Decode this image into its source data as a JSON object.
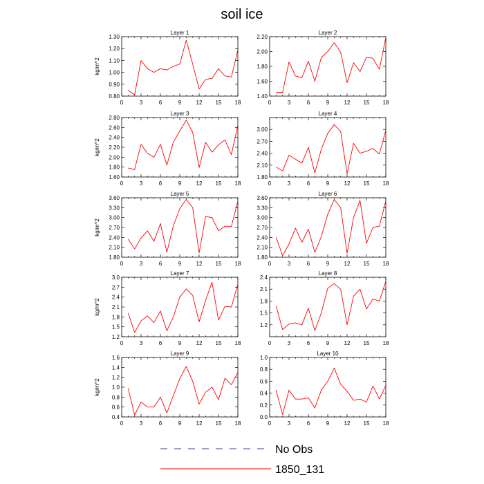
{
  "figure_title": "soil ice",
  "colors": {
    "model_line": "#ff0000",
    "obs_line": "#3d3d99",
    "axis": "#000000"
  },
  "legend": [
    {
      "label": "No Obs",
      "style": "dashed",
      "color": "#3d3d99"
    },
    {
      "label": "1850_131",
      "style": "solid",
      "color": "#ff0000"
    }
  ],
  "chart_data": [
    {
      "type": "line",
      "title": "Layer 1",
      "xlabel": "",
      "ylabel": "kg/m^2",
      "xlim": [
        0,
        18
      ],
      "ylim": [
        0.8,
        1.3
      ],
      "xticks": [
        0,
        3,
        6,
        9,
        12,
        15,
        18
      ],
      "xticklabels": [
        "0",
        "3",
        "6",
        "9",
        "12",
        "15",
        "18"
      ],
      "yticks": [
        0.8,
        0.9,
        1.0,
        1.1,
        1.2,
        1.3
      ],
      "yticklabels": [
        "0.80",
        "0.90",
        "1.00",
        "1.10",
        "1.20",
        "1.30"
      ],
      "x": [
        1,
        2,
        3,
        4,
        5,
        6,
        7,
        8,
        9,
        10,
        11,
        12,
        13,
        14,
        15,
        16,
        17,
        18
      ],
      "series": [
        {
          "name": "1850_131",
          "values": [
            0.85,
            0.81,
            1.1,
            1.03,
            1.0,
            1.03,
            1.02,
            1.05,
            1.07,
            1.27,
            1.07,
            0.86,
            0.94,
            0.95,
            1.03,
            0.97,
            0.96,
            1.19
          ]
        }
      ]
    },
    {
      "type": "line",
      "title": "Layer 2",
      "xlabel": "",
      "ylabel": "",
      "xlim": [
        0,
        18
      ],
      "ylim": [
        1.4,
        2.2
      ],
      "xticks": [
        0,
        3,
        6,
        9,
        12,
        15,
        18
      ],
      "xticklabels": [
        "0",
        "3",
        "6",
        "9",
        "12",
        "15",
        "18"
      ],
      "yticks": [
        1.4,
        1.6,
        1.8,
        2.0,
        2.2
      ],
      "yticklabels": [
        "1.40",
        "1.60",
        "1.80",
        "2.00",
        "2.20"
      ],
      "x": [
        1,
        2,
        3,
        4,
        5,
        6,
        7,
        8,
        9,
        10,
        11,
        12,
        13,
        14,
        15,
        16,
        17,
        18
      ],
      "series": [
        {
          "name": "1850_131",
          "values": [
            1.45,
            1.45,
            1.86,
            1.67,
            1.65,
            1.87,
            1.6,
            1.92,
            2.0,
            2.12,
            1.99,
            1.58,
            1.85,
            1.73,
            1.92,
            1.91,
            1.76,
            2.19
          ]
        }
      ]
    },
    {
      "type": "line",
      "title": "Layer 3",
      "xlabel": "",
      "ylabel": "kg/m^2",
      "xlim": [
        0,
        18
      ],
      "ylim": [
        1.6,
        2.8
      ],
      "xticks": [
        0,
        3,
        6,
        9,
        12,
        15,
        18
      ],
      "xticklabels": [
        "0",
        "3",
        "6",
        "9",
        "12",
        "15",
        "18"
      ],
      "yticks": [
        1.6,
        1.8,
        2.0,
        2.2,
        2.4,
        2.6,
        2.8
      ],
      "yticklabels": [
        "1.60",
        "1.80",
        "2.00",
        "2.20",
        "2.40",
        "2.60",
        "2.80"
      ],
      "x": [
        1,
        2,
        3,
        4,
        5,
        6,
        7,
        8,
        9,
        10,
        11,
        12,
        13,
        14,
        15,
        16,
        17,
        18
      ],
      "series": [
        {
          "name": "1850_131",
          "values": [
            1.78,
            1.75,
            2.26,
            2.08,
            2.0,
            2.26,
            1.84,
            2.3,
            2.53,
            2.75,
            2.5,
            1.79,
            2.3,
            2.1,
            2.25,
            2.35,
            2.05,
            2.65
          ]
        }
      ]
    },
    {
      "type": "line",
      "title": "Layer 4",
      "xlabel": "",
      "ylabel": "",
      "xlim": [
        0,
        18
      ],
      "ylim": [
        1.8,
        3.3
      ],
      "xticks": [
        0,
        3,
        6,
        9,
        12,
        15,
        18
      ],
      "xticklabels": [
        "0",
        "3",
        "6",
        "9",
        "12",
        "15",
        "18"
      ],
      "yticks": [
        1.8,
        2.1,
        2.4,
        2.7,
        3.0
      ],
      "yticklabels": [
        "1.80",
        "2.10",
        "2.40",
        "2.70",
        "3.00"
      ],
      "x": [
        1,
        2,
        3,
        4,
        5,
        6,
        7,
        8,
        9,
        10,
        11,
        12,
        13,
        14,
        15,
        16,
        17,
        18
      ],
      "series": [
        {
          "name": "1850_131",
          "values": [
            2.05,
            1.95,
            2.35,
            2.25,
            2.15,
            2.55,
            1.9,
            2.5,
            2.9,
            3.12,
            2.95,
            1.88,
            2.65,
            2.4,
            2.45,
            2.52,
            2.38,
            2.98
          ]
        }
      ]
    },
    {
      "type": "line",
      "title": "Layer 5",
      "xlabel": "",
      "ylabel": "kg/m^2",
      "xlim": [
        0,
        18
      ],
      "ylim": [
        1.8,
        3.6
      ],
      "xticks": [
        0,
        3,
        6,
        9,
        12,
        15,
        18
      ],
      "xticklabels": [
        "0",
        "3",
        "6",
        "9",
        "12",
        "15",
        "18"
      ],
      "yticks": [
        1.8,
        2.1,
        2.4,
        2.7,
        3.0,
        3.3,
        3.6
      ],
      "yticklabels": [
        "1.80",
        "2.10",
        "2.40",
        "2.70",
        "3.00",
        "3.30",
        "3.60"
      ],
      "x": [
        1,
        2,
        3,
        4,
        5,
        6,
        7,
        8,
        9,
        10,
        11,
        12,
        13,
        14,
        15,
        16,
        17,
        18
      ],
      "series": [
        {
          "name": "1850_131",
          "values": [
            2.35,
            2.05,
            2.38,
            2.6,
            2.28,
            2.82,
            1.95,
            2.75,
            3.27,
            3.55,
            3.3,
            1.93,
            3.03,
            3.0,
            2.6,
            2.74,
            2.73,
            3.5
          ]
        }
      ]
    },
    {
      "type": "line",
      "title": "Layer 6",
      "xlabel": "",
      "ylabel": "",
      "xlim": [
        0,
        18
      ],
      "ylim": [
        1.8,
        3.6
      ],
      "xticks": [
        0,
        3,
        6,
        9,
        12,
        15,
        18
      ],
      "xticklabels": [
        "0",
        "3",
        "6",
        "9",
        "12",
        "15",
        "18"
      ],
      "yticks": [
        1.8,
        2.1,
        2.4,
        2.7,
        3.0,
        3.3,
        3.6
      ],
      "yticklabels": [
        "1.80",
        "2.10",
        "2.40",
        "2.70",
        "3.00",
        "3.30",
        "3.60"
      ],
      "x": [
        1,
        2,
        3,
        4,
        5,
        6,
        7,
        8,
        9,
        10,
        11,
        12,
        13,
        14,
        15,
        16,
        17,
        18
      ],
      "series": [
        {
          "name": "1850_131",
          "values": [
            2.4,
            1.85,
            2.2,
            2.68,
            2.25,
            2.65,
            1.95,
            2.42,
            3.1,
            3.55,
            3.3,
            1.92,
            3.0,
            3.52,
            2.22,
            2.7,
            2.74,
            3.5
          ]
        }
      ]
    },
    {
      "type": "line",
      "title": "Layer 7",
      "xlabel": "",
      "ylabel": "kg/m^2",
      "xlim": [
        0,
        18
      ],
      "ylim": [
        1.2,
        3.0
      ],
      "xticks": [
        0,
        3,
        6,
        9,
        12,
        15,
        18
      ],
      "xticklabels": [
        "0",
        "3",
        "6",
        "9",
        "12",
        "15",
        "18"
      ],
      "yticks": [
        1.2,
        1.5,
        1.8,
        2.1,
        2.4,
        2.7,
        3.0
      ],
      "yticklabels": [
        "1.2",
        "1.5",
        "1.8",
        "2.1",
        "2.4",
        "2.7",
        "3.0"
      ],
      "x": [
        1,
        2,
        3,
        4,
        5,
        6,
        7,
        8,
        9,
        10,
        11,
        12,
        13,
        14,
        15,
        16,
        17,
        18
      ],
      "series": [
        {
          "name": "1850_131",
          "values": [
            1.92,
            1.33,
            1.68,
            1.83,
            1.63,
            1.98,
            1.38,
            1.8,
            2.4,
            2.65,
            2.45,
            1.65,
            2.3,
            2.85,
            1.7,
            2.12,
            2.1,
            2.8
          ]
        }
      ]
    },
    {
      "type": "line",
      "title": "Layer 8",
      "xlabel": "",
      "ylabel": "",
      "xlim": [
        0,
        18
      ],
      "ylim": [
        0.9,
        2.4
      ],
      "xticks": [
        0,
        3,
        6,
        9,
        12,
        15,
        18
      ],
      "xticklabels": [
        "0",
        "3",
        "6",
        "9",
        "12",
        "15",
        "18"
      ],
      "yticks": [
        1.2,
        1.5,
        1.8,
        2.1,
        2.4
      ],
      "yticklabels": [
        "1.2",
        "1.5",
        "1.8",
        "2.1",
        "2.4"
      ],
      "x": [
        1,
        2,
        3,
        4,
        5,
        6,
        7,
        8,
        9,
        10,
        11,
        12,
        13,
        14,
        15,
        16,
        17,
        18
      ],
      "series": [
        {
          "name": "1850_131",
          "values": [
            1.68,
            1.08,
            1.22,
            1.25,
            1.2,
            1.62,
            1.05,
            1.5,
            2.12,
            2.24,
            2.1,
            1.2,
            1.92,
            2.1,
            1.6,
            1.85,
            1.8,
            2.3
          ]
        }
      ]
    },
    {
      "type": "line",
      "title": "Layer 9",
      "xlabel": "",
      "ylabel": "kg/m^2",
      "xlim": [
        0,
        18
      ],
      "ylim": [
        0.4,
        1.6
      ],
      "xticks": [
        0,
        3,
        6,
        9,
        12,
        15,
        18
      ],
      "xticklabels": [
        "0",
        "3",
        "6",
        "9",
        "12",
        "15",
        "18"
      ],
      "yticks": [
        0.4,
        0.6,
        0.8,
        1.0,
        1.2,
        1.4,
        1.6
      ],
      "yticklabels": [
        "0.4",
        "0.6",
        "0.8",
        "1.0",
        "1.2",
        "1.4",
        "1.6"
      ],
      "x": [
        1,
        2,
        3,
        4,
        5,
        6,
        7,
        8,
        9,
        10,
        11,
        12,
        13,
        14,
        15,
        16,
        17,
        18
      ],
      "series": [
        {
          "name": "1850_131",
          "values": [
            0.98,
            0.44,
            0.7,
            0.6,
            0.6,
            0.8,
            0.48,
            0.83,
            1.17,
            1.42,
            1.12,
            0.66,
            0.9,
            1.0,
            0.75,
            1.18,
            1.05,
            1.3
          ]
        }
      ]
    },
    {
      "type": "line",
      "title": "Layer 10",
      "xlabel": "",
      "ylabel": "",
      "xlim": [
        0,
        18
      ],
      "ylim": [
        0.0,
        1.0
      ],
      "xticks": [
        0,
        3,
        6,
        9,
        12,
        15,
        18
      ],
      "xticklabels": [
        "0",
        "3",
        "6",
        "9",
        "12",
        "15",
        "18"
      ],
      "yticks": [
        0.0,
        0.2,
        0.4,
        0.6,
        0.8,
        1.0
      ],
      "yticklabels": [
        "0.0",
        "0.2",
        "0.4",
        "0.6",
        "0.8",
        "1.0"
      ],
      "x": [
        1,
        2,
        3,
        4,
        5,
        6,
        7,
        8,
        9,
        10,
        11,
        12,
        13,
        14,
        15,
        16,
        17,
        18
      ],
      "series": [
        {
          "name": "1850_131",
          "values": [
            0.45,
            0.04,
            0.45,
            0.3,
            0.3,
            0.32,
            0.15,
            0.45,
            0.6,
            0.82,
            0.55,
            0.43,
            0.28,
            0.3,
            0.25,
            0.52,
            0.3,
            0.53
          ]
        }
      ]
    }
  ]
}
